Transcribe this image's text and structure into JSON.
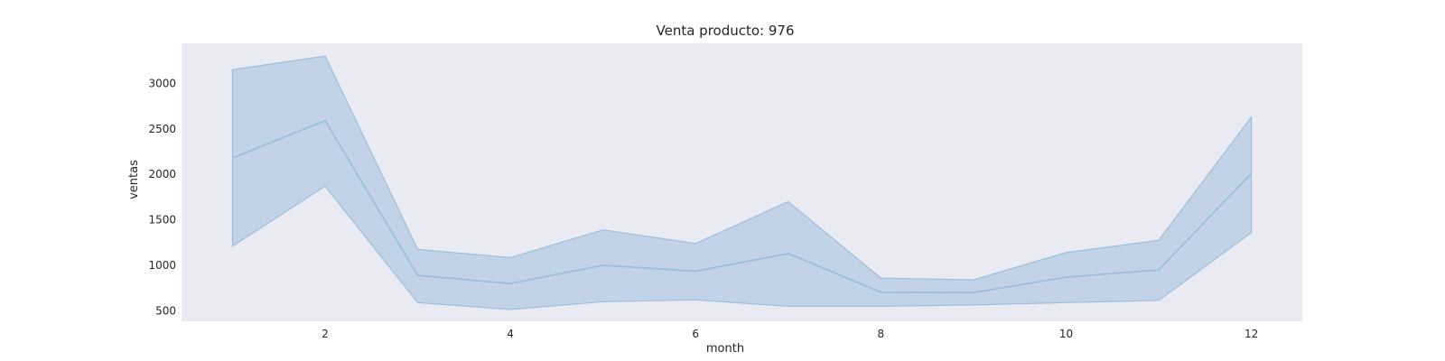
{
  "chart_data": {
    "type": "line",
    "title": "Venta producto: 976",
    "xlabel": "month",
    "ylabel": "ventas",
    "xlim": [
      0.45,
      12.55
    ],
    "ylim": [
      385,
      3440
    ],
    "grid": false,
    "x_ticks": [
      2,
      4,
      6,
      8,
      10,
      12
    ],
    "y_ticks": [
      500,
      1000,
      1500,
      2000,
      2500,
      3000
    ],
    "series": [
      {
        "x": [
          1,
          2,
          3,
          4,
          5,
          6,
          7,
          8,
          9,
          10,
          11,
          12
        ],
        "values": [
          2180,
          2590,
          890,
          800,
          1000,
          935,
          1130,
          705,
          700,
          870,
          950,
          2010
        ],
        "lower": [
          1210,
          1870,
          590,
          515,
          600,
          620,
          550,
          550,
          565,
          590,
          615,
          1360
        ],
        "upper": [
          3150,
          3300,
          1175,
          1085,
          1390,
          1240,
          1700,
          860,
          840,
          1140,
          1275,
          2630
        ]
      }
    ],
    "colors": {
      "line": "#9dbfdc",
      "band": "#a6c3e0",
      "plot_bg": "#eaeaf2"
    }
  }
}
